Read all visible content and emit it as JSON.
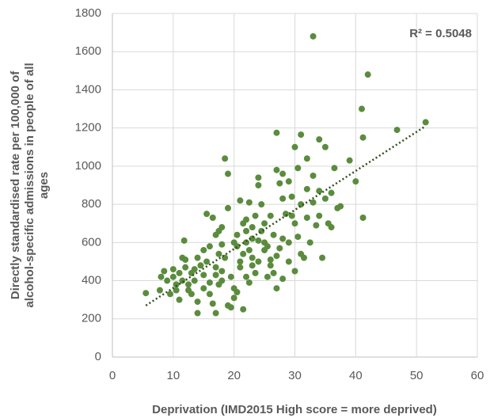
{
  "chart_data": {
    "type": "scatter",
    "x_label": "Deprivation (IMD2015 High score = more deprived)",
    "y_label_lines": [
      "Directly standardised rate per 100,000 of",
      "alcohol-specific admissions in people of all",
      "ages"
    ],
    "annotation": "R² = 0.5048",
    "color": "#5b8c3e",
    "trendline_color": "#2f4f1c",
    "grid": true,
    "xlim": [
      0,
      60
    ],
    "xticks": [
      0,
      10,
      20,
      30,
      40,
      50,
      60
    ],
    "ylim": [
      0,
      1800
    ],
    "yticks": [
      0,
      200,
      400,
      600,
      800,
      1000,
      1200,
      1400,
      1600,
      1800
    ],
    "trendline": {
      "x": [
        5.5,
        51.5
      ],
      "y": [
        270,
        1210
      ]
    },
    "x": [
      5.5,
      7.8,
      8,
      8.5,
      9,
      9.5,
      10,
      10,
      10.5,
      10.5,
      11,
      11,
      11.5,
      11.5,
      11.8,
      12,
      12,
      12.5,
      12.5,
      13,
      13,
      13.5,
      13.5,
      14,
      14,
      14,
      14.5,
      15,
      15,
      15,
      15.5,
      15.5,
      16,
      16,
      16,
      16.5,
      16.5,
      17,
      17,
      17,
      17,
      17.5,
      17.5,
      17.5,
      18,
      18,
      18,
      18,
      18.5,
      18.5,
      19,
      19,
      19,
      19.5,
      19.5,
      20,
      20,
      20,
      20.5,
      20.5,
      20.5,
      21,
      21,
      21,
      21.5,
      21.5,
      21.5,
      22,
      22,
      22,
      22,
      22.5,
      22.5,
      22.5,
      23,
      23,
      23,
      23,
      23.5,
      23.5,
      24,
      24,
      24,
      24,
      24.5,
      24.5,
      25,
      25,
      25,
      25.5,
      25.5,
      26,
      26,
      26,
      26.5,
      26.5,
      27,
      27,
      27,
      27,
      27.5,
      27.5,
      28,
      28,
      28,
      28,
      28.5,
      29,
      29,
      29,
      29.5,
      29.5,
      30,
      30,
      30,
      30.5,
      30.5,
      31,
      31,
      31,
      31.5,
      32,
      32,
      32,
      32.5,
      33,
      33,
      33,
      33.5,
      34,
      34,
      34,
      34.5,
      35,
      35,
      35.5,
      36,
      36,
      36.5,
      37,
      37.5,
      39,
      40,
      41,
      41.2,
      41.2,
      42,
      46.8,
      51.5
    ],
    "y": [
      335,
      350,
      420,
      450,
      400,
      330,
      420,
      460,
      350,
      380,
      440,
      300,
      400,
      520,
      610,
      510,
      470,
      380,
      350,
      440,
      330,
      460,
      400,
      290,
      230,
      520,
      480,
      360,
      430,
      560,
      750,
      500,
      390,
      330,
      580,
      280,
      730,
      470,
      430,
      640,
      230,
      540,
      660,
      380,
      450,
      400,
      590,
      680,
      520,
      1040,
      960,
      780,
      270,
      260,
      420,
      360,
      600,
      310,
      580,
      640,
      340,
      500,
      470,
      820,
      540,
      250,
      700,
      600,
      660,
      720,
      420,
      810,
      560,
      390,
      480,
      620,
      680,
      520,
      740,
      440,
      610,
      900,
      940,
      500,
      660,
      800,
      560,
      600,
      700,
      580,
      420,
      480,
      510,
      740,
      640,
      440,
      530,
      980,
      1175,
      360,
      910,
      570,
      830,
      960,
      620,
      410,
      750,
      920,
      600,
      500,
      840,
      740,
      1100,
      700,
      450,
      630,
      990,
      1165,
      540,
      800,
      520,
      1040,
      730,
      880,
      600,
      1680,
      950,
      810,
      690,
      1140,
      870,
      740,
      520,
      1100,
      830,
      700,
      860,
      680,
      990,
      780,
      790,
      1030,
      920,
      1300,
      1150,
      730,
      1480,
      1190,
      1230
    ]
  }
}
